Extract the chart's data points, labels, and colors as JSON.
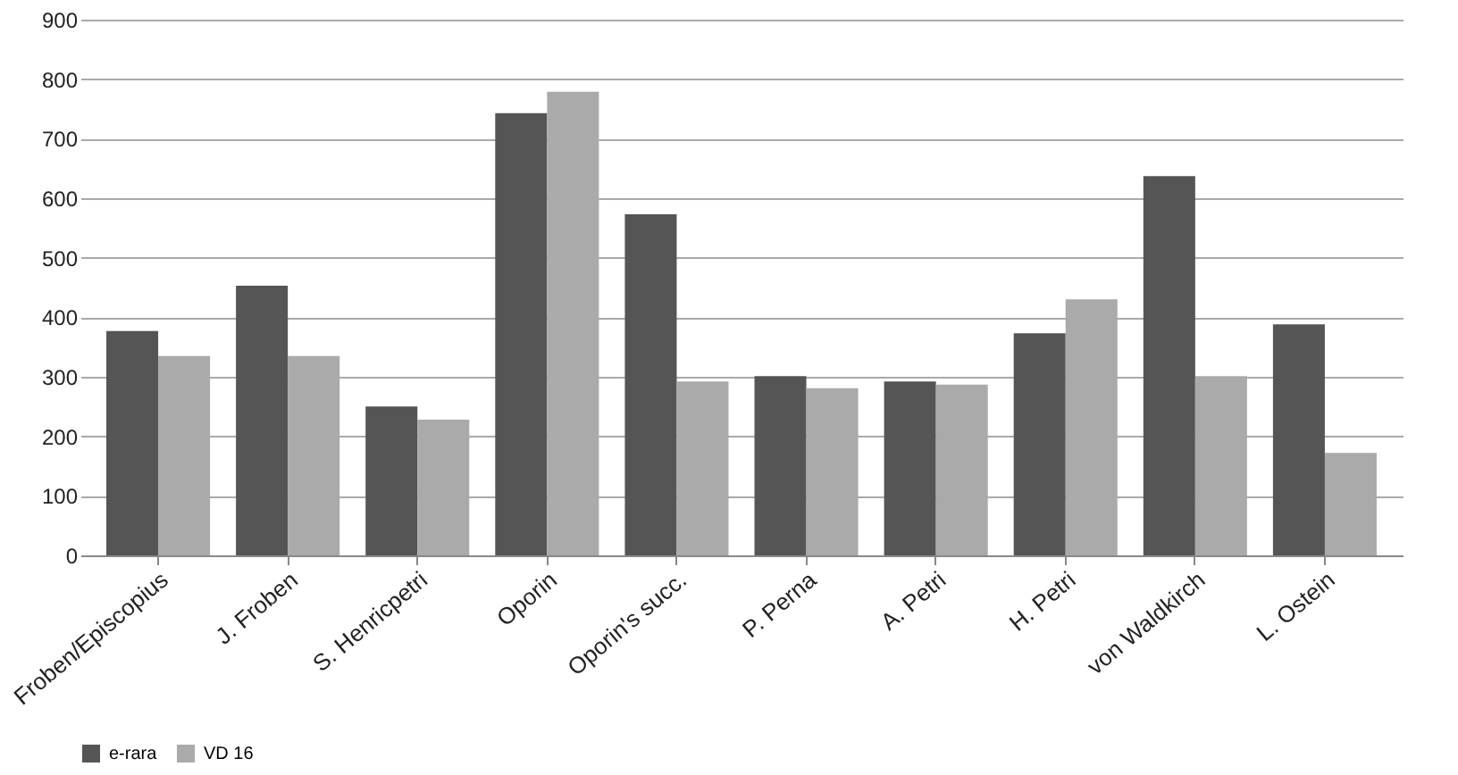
{
  "chart_data": {
    "type": "bar",
    "categories": [
      "Froben/Episcopius",
      "J. Froben",
      "S. Henricpetri",
      "Oporin",
      "Oporin's succ.",
      "P. Perna",
      "A. Petri",
      "H. Petri",
      "von Waldkirch",
      "L. Ostein"
    ],
    "series": [
      {
        "name": "e-rara",
        "color": "#555555",
        "values": [
          377,
          453,
          250,
          743,
          573,
          301,
          292,
          373,
          637,
          388
        ]
      },
      {
        "name": "VD 16",
        "color": "#aaaaaa",
        "values": [
          335,
          335,
          228,
          779,
          292,
          281,
          287,
          430,
          301,
          172
        ]
      }
    ],
    "ylim": [
      0,
      900
    ],
    "yticks": [
      0,
      100,
      200,
      300,
      400,
      500,
      600,
      700,
      800,
      900
    ],
    "grid": "y",
    "legend": "bottom"
  }
}
